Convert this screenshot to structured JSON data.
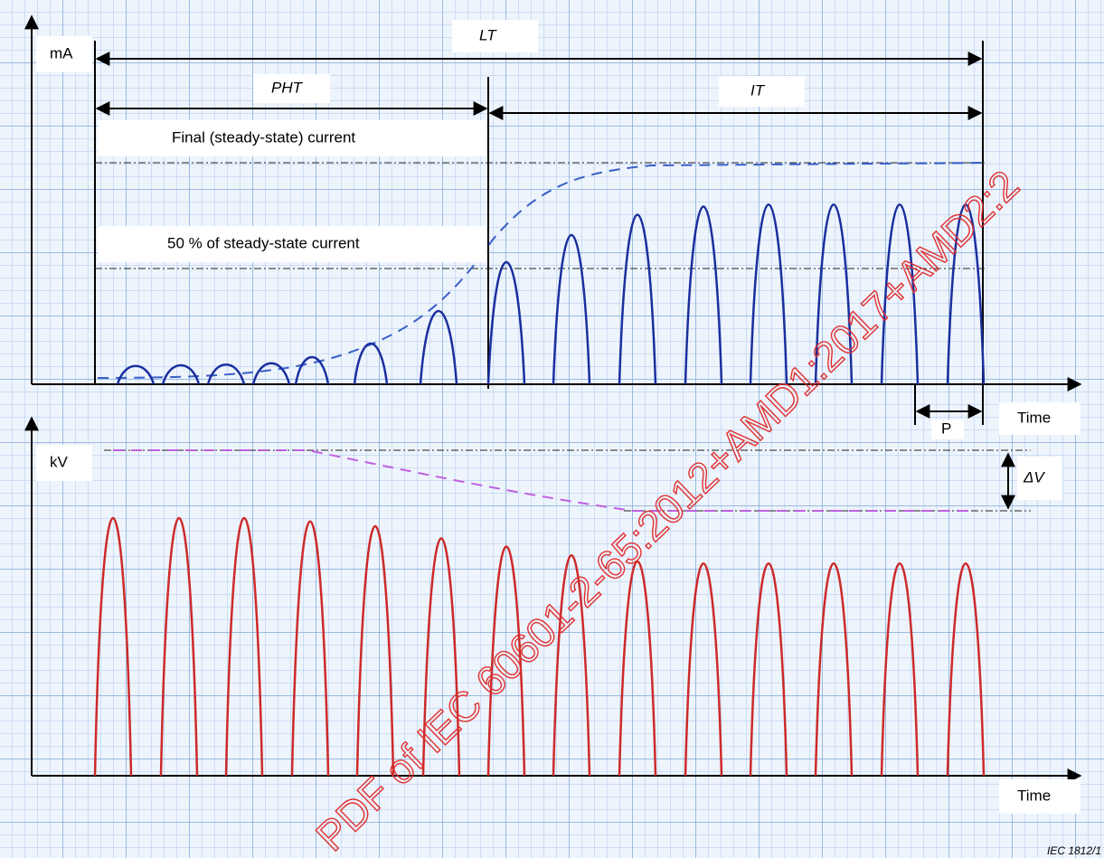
{
  "labels": {
    "ma": "mA",
    "lt": "LT",
    "pht": "PHT",
    "it": "IT",
    "final": "Final (steady-state) current",
    "fifty": "50 % of steady-state current",
    "time_top": "Time",
    "p": "P",
    "kv": "kV",
    "delta_v": "ΔV",
    "time_bottom": "Time",
    "credit": "IEC 1812/1",
    "watermark": "PDF of IEC 60601-2-65:2012+AMD1:2017+AMD2:2"
  }
}
